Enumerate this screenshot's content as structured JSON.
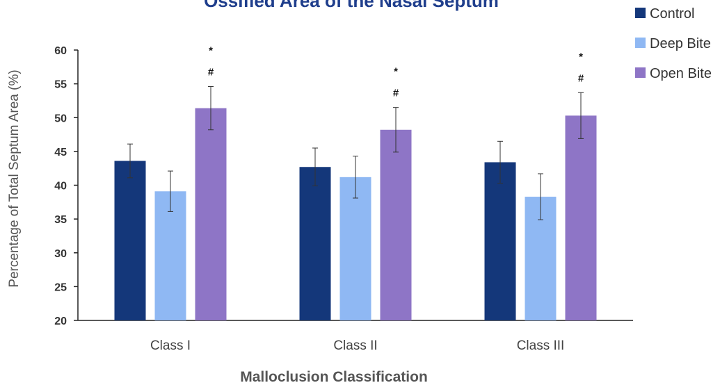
{
  "chart_data": {
    "type": "bar",
    "title": "Ossified Area of the Nasal Septum",
    "xlabel": "Malloclusion Classification",
    "ylabel": "Percentage of Total Septum Area (%)",
    "ylim": [
      20,
      60
    ],
    "yticks": [
      20,
      25,
      30,
      35,
      40,
      45,
      50,
      55,
      60
    ],
    "categories": [
      "Class I",
      "Class  II",
      "Class III"
    ],
    "series": [
      {
        "name": "Control",
        "color": "#14377a",
        "values": [
          43.6,
          42.7,
          43.4
        ],
        "errors": [
          2.5,
          2.8,
          3.1
        ]
      },
      {
        "name": "Deep Bite",
        "color": "#8fb8f3",
        "values": [
          39.1,
          41.2,
          38.3
        ],
        "errors": [
          3.0,
          3.1,
          3.4
        ]
      },
      {
        "name": "Open Bite",
        "color": "#8e75c6",
        "values": [
          51.4,
          48.2,
          50.3
        ],
        "errors": [
          3.2,
          3.3,
          3.4
        ]
      }
    ],
    "annotations": [
      {
        "category_index": 0,
        "series_index": 2,
        "marks": [
          "*",
          "#"
        ]
      },
      {
        "category_index": 1,
        "series_index": 2,
        "marks": [
          "*",
          "#"
        ]
      },
      {
        "category_index": 2,
        "series_index": 2,
        "marks": [
          "*",
          "#"
        ]
      }
    ],
    "legend_position": "top-right",
    "grid": false,
    "title_color": "#1f3e8c",
    "axis_color": "#222222"
  }
}
